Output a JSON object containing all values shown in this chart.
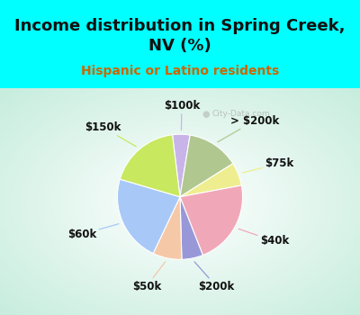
{
  "title": "Income distribution in Spring Creek,\nNV (%)",
  "subtitle": "Hispanic or Latino residents",
  "title_color": "#111111",
  "subtitle_color": "#cc6600",
  "bg_top_color": "#00ffff",
  "watermark": "City-Data.com",
  "slices": [
    {
      "label": "$100k",
      "value": 4.5,
      "color": "#c8b4e8"
    },
    {
      "label": "> $200k",
      "value": 13.5,
      "color": "#b0c890"
    },
    {
      "label": "$75k",
      "value": 6.0,
      "color": "#eeee90"
    },
    {
      "label": "$40k",
      "value": 22.0,
      "color": "#f0a8b8"
    },
    {
      "label": "$200k",
      "value": 5.5,
      "color": "#9898d8"
    },
    {
      "label": "$50k",
      "value": 7.5,
      "color": "#f5c8a8"
    },
    {
      "label": "$60k",
      "value": 22.5,
      "color": "#a8c8f8"
    },
    {
      "label": "$150k",
      "value": 18.5,
      "color": "#c8e860"
    }
  ],
  "label_fontsize": 8.5,
  "title_fontsize": 13,
  "subtitle_fontsize": 10,
  "startangle": 97
}
